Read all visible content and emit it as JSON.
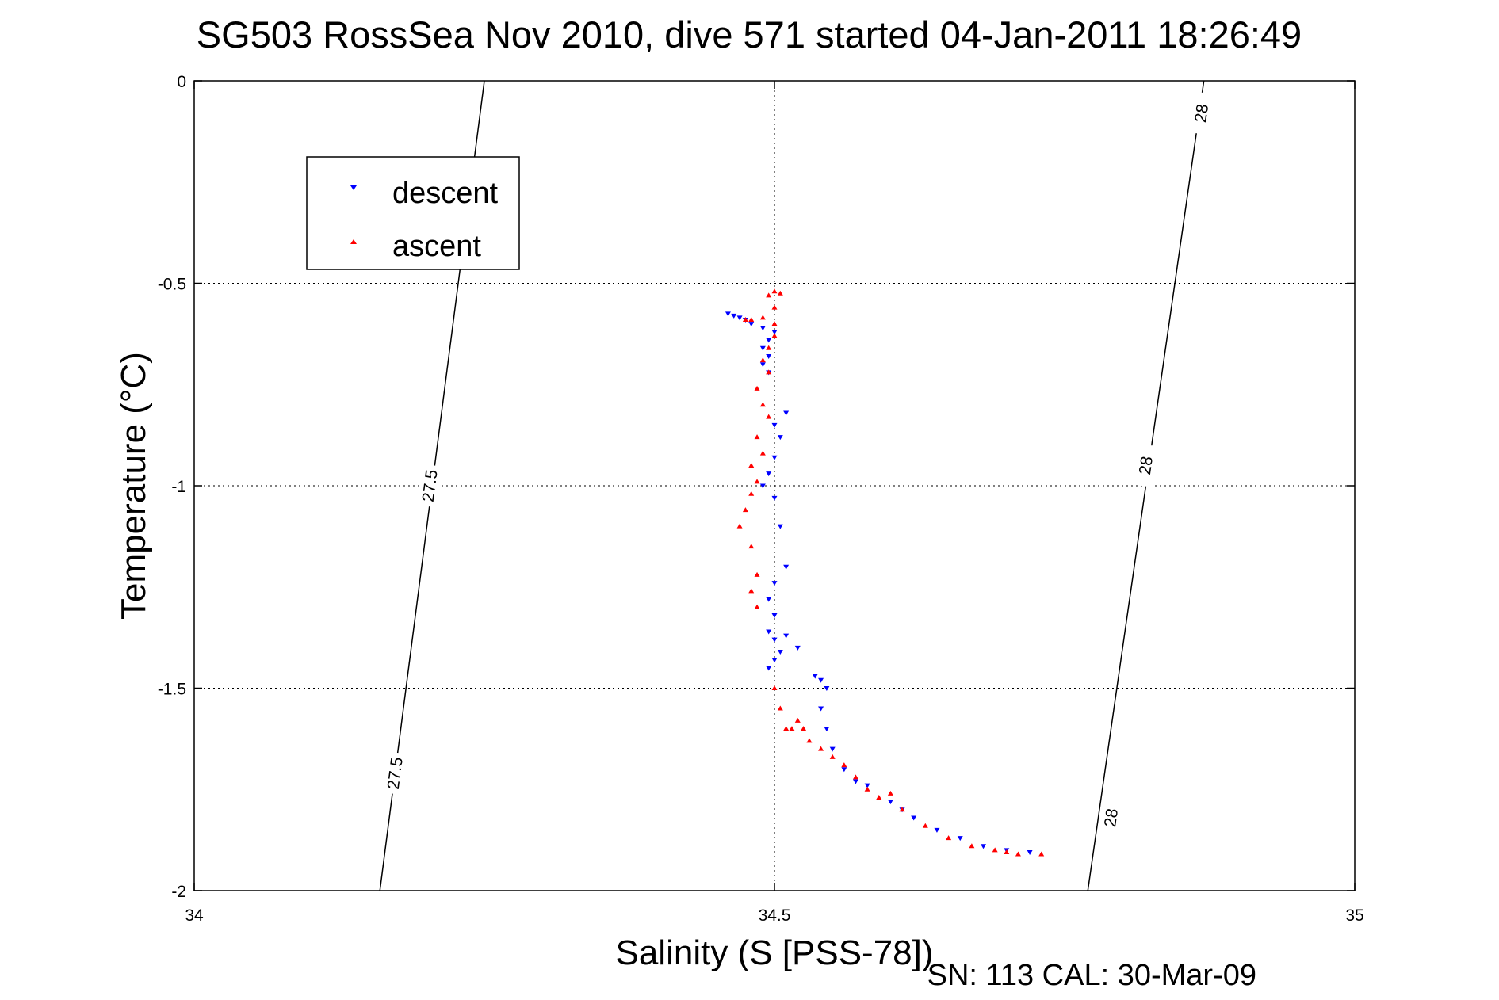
{
  "chart_data": {
    "type": "scatter",
    "title": "SG503 RossSea Nov 2010, dive 571 started 04-Jan-2011 18:26:49",
    "xlabel": "Salinity (S [PSS-78])",
    "ylabel": "Temperature (°C)",
    "footer": "SN: 113  CAL: 30-Mar-09",
    "xlim": [
      34,
      35
    ],
    "ylim": [
      -2,
      0
    ],
    "xticks": [
      34,
      34.5,
      35
    ],
    "yticks": [
      0,
      -0.5,
      -1,
      -1.5,
      -2
    ],
    "xtick_labels": [
      "34",
      "34.5",
      "35"
    ],
    "ytick_labels": [
      "0",
      "-0.5",
      "-1",
      "-1.5",
      "-2"
    ],
    "grid": true,
    "legend_position": "top-left",
    "series": [
      {
        "name": "descent",
        "color": "#0000ff",
        "marker": "triangle-down",
        "points": [
          [
            34.46,
            -0.575
          ],
          [
            34.465,
            -0.58
          ],
          [
            34.47,
            -0.585
          ],
          [
            34.475,
            -0.59
          ],
          [
            34.48,
            -0.6
          ],
          [
            34.49,
            -0.61
          ],
          [
            34.5,
            -0.62
          ],
          [
            34.495,
            -0.64
          ],
          [
            34.49,
            -0.66
          ],
          [
            34.495,
            -0.68
          ],
          [
            34.49,
            -0.7
          ],
          [
            34.495,
            -0.72
          ],
          [
            34.5,
            -0.85
          ],
          [
            34.51,
            -0.82
          ],
          [
            34.505,
            -0.88
          ],
          [
            34.5,
            -0.93
          ],
          [
            34.495,
            -0.97
          ],
          [
            34.49,
            -1.0
          ],
          [
            34.5,
            -1.03
          ],
          [
            34.505,
            -1.1
          ],
          [
            34.51,
            -1.2
          ],
          [
            34.5,
            -1.24
          ],
          [
            34.495,
            -1.28
          ],
          [
            34.5,
            -1.32
          ],
          [
            34.495,
            -1.36
          ],
          [
            34.5,
            -1.38
          ],
          [
            34.51,
            -1.37
          ],
          [
            34.505,
            -1.41
          ],
          [
            34.5,
            -1.43
          ],
          [
            34.495,
            -1.45
          ],
          [
            34.52,
            -1.4
          ],
          [
            34.535,
            -1.47
          ],
          [
            34.54,
            -1.48
          ],
          [
            34.545,
            -1.5
          ],
          [
            34.54,
            -1.55
          ],
          [
            34.545,
            -1.6
          ],
          [
            34.55,
            -1.65
          ],
          [
            34.56,
            -1.7
          ],
          [
            34.57,
            -1.73
          ],
          [
            34.58,
            -1.74
          ],
          [
            34.6,
            -1.78
          ],
          [
            34.61,
            -1.8
          ],
          [
            34.62,
            -1.82
          ],
          [
            34.64,
            -1.85
          ],
          [
            34.66,
            -1.87
          ],
          [
            34.68,
            -1.89
          ],
          [
            34.7,
            -1.9
          ],
          [
            34.72,
            -1.905
          ]
        ]
      },
      {
        "name": "ascent",
        "color": "#ff0000",
        "marker": "triangle-up",
        "points": [
          [
            34.5,
            -0.52
          ],
          [
            34.505,
            -0.525
          ],
          [
            34.495,
            -0.53
          ],
          [
            34.5,
            -0.56
          ],
          [
            34.49,
            -0.585
          ],
          [
            34.48,
            -0.59
          ],
          [
            34.475,
            -0.59
          ],
          [
            34.5,
            -0.6
          ],
          [
            34.5,
            -0.63
          ],
          [
            34.495,
            -0.66
          ],
          [
            34.49,
            -0.69
          ],
          [
            34.495,
            -0.72
          ],
          [
            34.485,
            -0.76
          ],
          [
            34.49,
            -0.8
          ],
          [
            34.495,
            -0.83
          ],
          [
            34.485,
            -0.88
          ],
          [
            34.49,
            -0.92
          ],
          [
            34.48,
            -0.95
          ],
          [
            34.485,
            -0.99
          ],
          [
            34.48,
            -1.02
          ],
          [
            34.475,
            -1.06
          ],
          [
            34.47,
            -1.1
          ],
          [
            34.48,
            -1.15
          ],
          [
            34.485,
            -1.22
          ],
          [
            34.48,
            -1.26
          ],
          [
            34.485,
            -1.3
          ],
          [
            34.5,
            -1.5
          ],
          [
            34.505,
            -1.55
          ],
          [
            34.51,
            -1.6
          ],
          [
            34.515,
            -1.6
          ],
          [
            34.52,
            -1.58
          ],
          [
            34.525,
            -1.6
          ],
          [
            34.53,
            -1.63
          ],
          [
            34.54,
            -1.65
          ],
          [
            34.55,
            -1.67
          ],
          [
            34.56,
            -1.69
          ],
          [
            34.57,
            -1.72
          ],
          [
            34.58,
            -1.75
          ],
          [
            34.59,
            -1.77
          ],
          [
            34.6,
            -1.76
          ],
          [
            34.61,
            -1.8
          ],
          [
            34.63,
            -1.84
          ],
          [
            34.65,
            -1.87
          ],
          [
            34.67,
            -1.89
          ],
          [
            34.69,
            -1.9
          ],
          [
            34.7,
            -1.905
          ],
          [
            34.71,
            -1.91
          ],
          [
            34.73,
            -1.91
          ]
        ]
      }
    ],
    "contours": [
      {
        "level": "27.5",
        "points": [
          [
            34.16,
            -2.0
          ],
          [
            34.25,
            0.0
          ]
        ],
        "label_positions": [
          [
            34.173,
            -1.71
          ],
          [
            34.203,
            -1.0
          ]
        ]
      },
      {
        "level": "28",
        "points": [
          [
            34.77,
            -2.0
          ],
          [
            34.87,
            0.0
          ]
        ],
        "label_positions": [
          [
            34.79,
            -1.82
          ],
          [
            34.82,
            -0.95
          ],
          [
            34.868,
            -0.08
          ]
        ]
      }
    ]
  }
}
